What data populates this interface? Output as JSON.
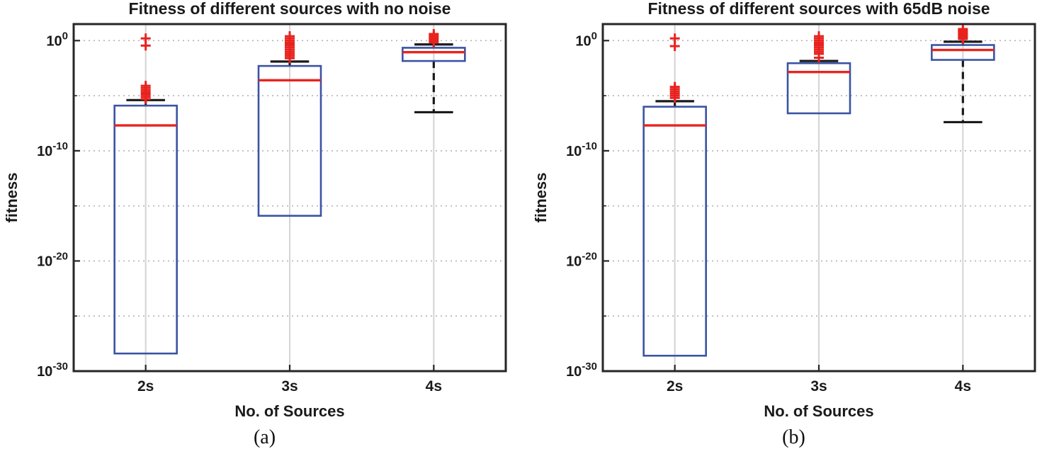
{
  "style": {
    "background": "#ffffff",
    "box_color": "#3a53a4",
    "median_color": "#e8231f",
    "outlier_color": "#e8231f",
    "whisker_color": "#1a1a1a",
    "axis_color": "#262626",
    "text_color": "#1a1a1a",
    "grid_vertical_color": "#d4d4d4",
    "grid_horizontal_color": "#b4b4b4"
  },
  "chart_data": [
    {
      "type": "box",
      "title": "Fitness of different sources with no noise",
      "xlabel": "No. of Sources",
      "ylabel": "fitness",
      "caption": "(a)",
      "y_scale": "log10",
      "ylim_exp": [
        -30,
        1.5
      ],
      "ytick_exp": [
        0,
        -10,
        -20,
        -30
      ],
      "ytick_labels": [
        "10^0",
        "10^-10",
        "10^-20",
        "10^-30"
      ],
      "yminor_exp": [
        -5,
        -15,
        -25
      ],
      "grid": true,
      "categories": [
        "2s",
        "3s",
        "4s"
      ],
      "boxes": [
        {
          "category": "2s",
          "q1_exp": -28.4,
          "median_exp": -7.7,
          "q3_exp": -5.9,
          "whisker_low_exp": -28.4,
          "whisker_high_exp": -5.4,
          "outliers_exp": [
            0.2,
            -0.45,
            -4.1,
            -4.3,
            -4.5,
            -4.7,
            -4.9,
            -5.1,
            -5.3
          ]
        },
        {
          "category": "3s",
          "q1_exp": -15.9,
          "median_exp": -3.6,
          "q3_exp": -2.3,
          "whisker_low_exp": -15.9,
          "whisker_high_exp": -1.9,
          "outliers_exp": [
            0.4,
            0.2,
            0.0,
            -0.2,
            -0.4,
            -0.6,
            -0.8,
            -1.0,
            -1.2,
            -1.4,
            -1.6
          ]
        },
        {
          "category": "4s",
          "q1_exp": -1.85,
          "median_exp": -1.05,
          "q3_exp": -0.65,
          "whisker_low_exp": -6.5,
          "whisker_high_exp": -0.35,
          "outliers_exp": [
            0.6,
            0.45,
            0.3,
            0.15,
            0.0,
            -0.15
          ]
        }
      ]
    },
    {
      "type": "box",
      "title": "Fitness of different sources with 65dB noise",
      "xlabel": "No. of Sources",
      "ylabel": "fitness",
      "caption": "(b)",
      "y_scale": "log10",
      "ylim_exp": [
        -30,
        1.5
      ],
      "ytick_exp": [
        0,
        -10,
        -20,
        -30
      ],
      "ytick_labels": [
        "10^0",
        "10^-10",
        "10^-20",
        "10^-30"
      ],
      "yminor_exp": [
        -5,
        -15,
        -25
      ],
      "grid": true,
      "categories": [
        "2s",
        "3s",
        "4s"
      ],
      "boxes": [
        {
          "category": "2s",
          "q1_exp": -28.6,
          "median_exp": -7.7,
          "q3_exp": -6.0,
          "whisker_low_exp": -28.6,
          "whisker_high_exp": -5.5,
          "outliers_exp": [
            0.2,
            -0.5,
            -4.2,
            -4.4,
            -4.6,
            -4.8,
            -5.0,
            -5.2
          ]
        },
        {
          "category": "3s",
          "q1_exp": -6.6,
          "median_exp": -2.85,
          "q3_exp": -2.05,
          "whisker_low_exp": -6.6,
          "whisker_high_exp": -1.85,
          "outliers_exp": [
            0.4,
            0.2,
            0.0,
            -0.2,
            -0.4,
            -0.6,
            -0.8,
            -1.0,
            -1.2,
            -1.55
          ]
        },
        {
          "category": "4s",
          "q1_exp": -1.75,
          "median_exp": -0.85,
          "q3_exp": -0.4,
          "whisker_low_exp": -7.4,
          "whisker_high_exp": -0.1,
          "outliers_exp": [
            1.05,
            0.9,
            0.75,
            0.6,
            0.45,
            0.3,
            0.15
          ]
        }
      ]
    }
  ]
}
